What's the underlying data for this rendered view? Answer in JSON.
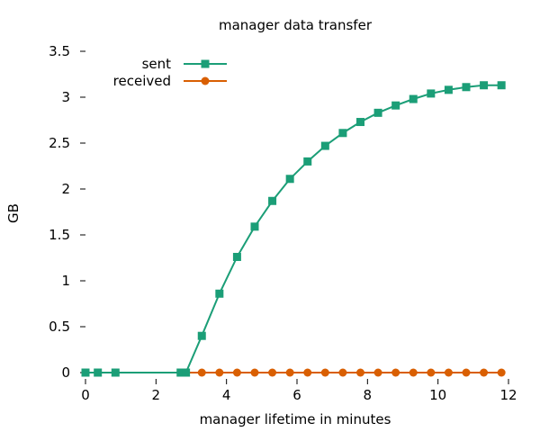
{
  "chart_data": {
    "type": "line",
    "title": "manager data transfer",
    "xlabel": "manager lifetime in minutes",
    "ylabel": "GB",
    "xlim": [
      0,
      12
    ],
    "ylim": [
      0,
      3.5
    ],
    "xticks": [
      0,
      2,
      4,
      6,
      8,
      10,
      12
    ],
    "xtick_labels": [
      "0",
      "2",
      "4",
      "6",
      "8",
      "10",
      "12"
    ],
    "yticks": [
      0,
      0.5,
      1,
      1.5,
      2,
      2.5,
      3,
      3.5
    ],
    "ytick_labels": [
      "0",
      "0.5",
      "1",
      "1.5",
      "2",
      "2.5",
      "3",
      "3.5"
    ],
    "grid": false,
    "legend_position": "top-left",
    "series": [
      {
        "name": "sent",
        "color": "#1b9e77",
        "marker": "square",
        "x": [
          0,
          0.35,
          0.85,
          2.7,
          2.85,
          3.3,
          3.8,
          4.3,
          4.8,
          5.3,
          5.8,
          6.3,
          6.8,
          7.3,
          7.8,
          8.3,
          8.8,
          9.3,
          9.8,
          10.3,
          10.8,
          11.3,
          11.8
        ],
        "y": [
          0,
          0,
          0,
          0,
          0,
          0.4,
          0.86,
          1.26,
          1.59,
          1.87,
          2.11,
          2.3,
          2.47,
          2.61,
          2.73,
          2.83,
          2.91,
          2.98,
          3.04,
          3.08,
          3.11,
          3.13,
          3.13
        ]
      },
      {
        "name": "received",
        "color": "#d95f02",
        "marker": "circle",
        "x": [
          0,
          0.35,
          0.85,
          2.7,
          2.85,
          3.3,
          3.8,
          4.3,
          4.8,
          5.3,
          5.8,
          6.3,
          6.8,
          7.3,
          7.8,
          8.3,
          8.8,
          9.3,
          9.8,
          10.3,
          10.8,
          11.3,
          11.8
        ],
        "y": [
          0,
          0,
          0,
          0,
          0,
          0,
          0,
          0,
          0,
          0,
          0,
          0,
          0,
          0,
          0,
          0,
          0,
          0,
          0,
          0,
          0,
          0,
          0
        ]
      }
    ]
  }
}
